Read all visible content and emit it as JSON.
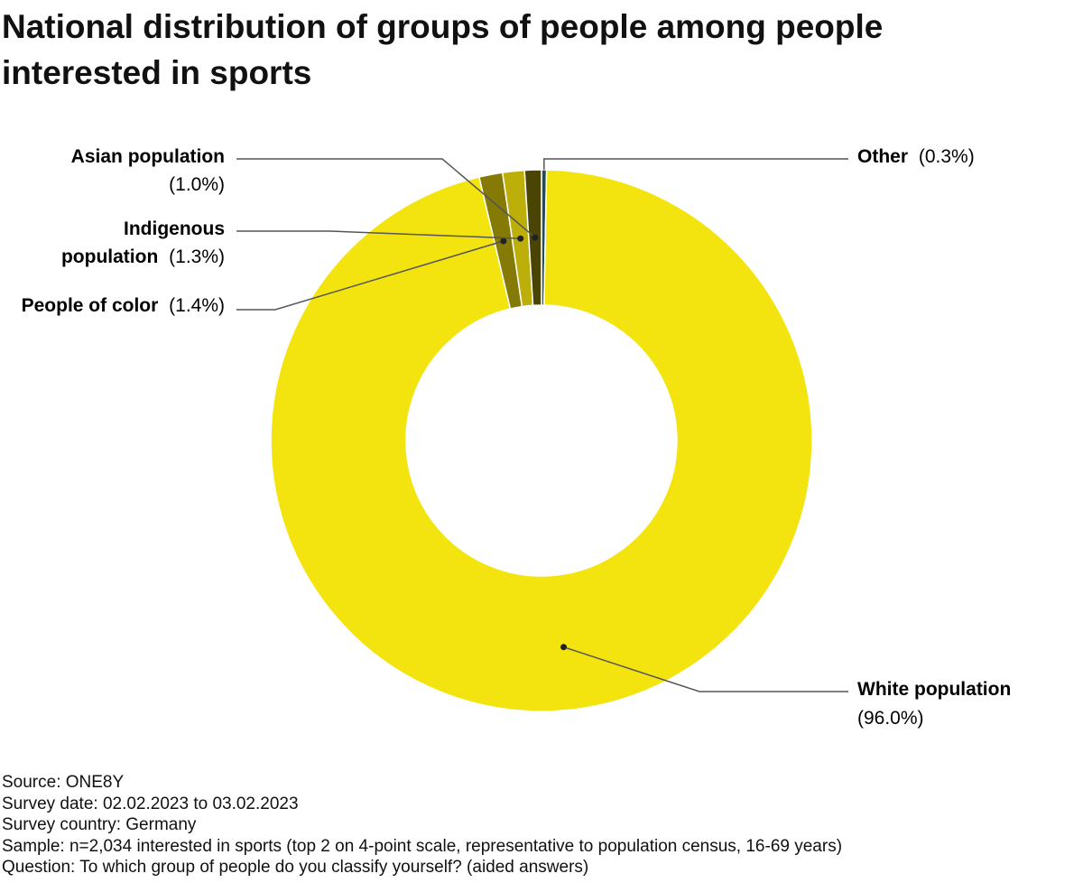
{
  "chart_data": {
    "type": "pie",
    "title": "National distribution of groups of people among people interested in sports",
    "slices": [
      {
        "name": "Other",
        "value": 0.3,
        "display": "(0.3%)",
        "color": "#1f4e5a"
      },
      {
        "name": "White population",
        "value": 96.0,
        "display": "(96.0%)",
        "color": "#f3e40f"
      },
      {
        "name": "People of color",
        "value": 1.4,
        "display": "(1.4%)",
        "color": "#857a06"
      },
      {
        "name": "Indigenous population",
        "value": 1.3,
        "display": "(1.3%)",
        "color": "#bdaf0a"
      },
      {
        "name": "Asian population",
        "value": 1.0,
        "display": "(1.0%)",
        "color": "#4a4405"
      }
    ],
    "donut": true
  },
  "footer": {
    "source": "Source: ONE8Y",
    "survey_date": "Survey date: 02.02.2023 to 03.02.2023",
    "survey_country": "Survey country: Germany",
    "sample": "Sample: n=2,034 interested in sports (top 2 on 4-point scale, representative to population census, 16-69 years)",
    "question": "Question: To which group of people do you classify yourself? (aided answers)"
  }
}
